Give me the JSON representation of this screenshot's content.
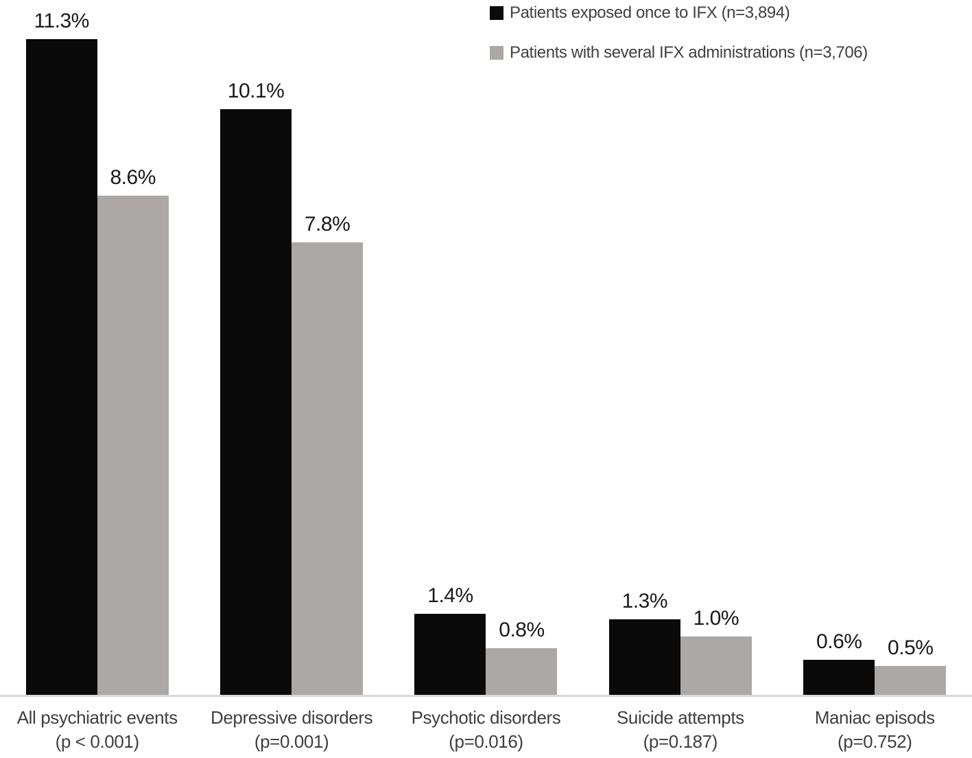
{
  "chart_data": {
    "type": "bar",
    "categories": [
      {
        "line1": "All psychiatric events",
        "line2": "(p < 0.001)"
      },
      {
        "line1": "Depressive disorders",
        "line2": "(p=0.001)"
      },
      {
        "line1": "Psychotic disorders",
        "line2": "(p=0.016)"
      },
      {
        "line1": "Suicide attempts",
        "line2": "(p=0.187)"
      },
      {
        "line1": "Maniac episods",
        "line2": "(p=0.752)"
      }
    ],
    "series": [
      {
        "name": "Patients exposed once to IFX (n=3,894)",
        "color": "#0a0a0a",
        "values": [
          11.3,
          10.1,
          1.4,
          1.3,
          0.6
        ],
        "labels": [
          "11.3%",
          "10.1%",
          "1.4%",
          "1.3%",
          "0.6%"
        ]
      },
      {
        "name": "Patients with several IFX administrations (n=3,706)",
        "color": "#aba8a6",
        "values": [
          8.6,
          7.8,
          0.8,
          1.0,
          0.5
        ],
        "labels": [
          "8.6%",
          "7.8%",
          "0.8%",
          "1.0%",
          "0.5%"
        ]
      }
    ],
    "title": "",
    "xlabel": "",
    "ylabel": "",
    "ylim": [
      0,
      12
    ],
    "grid": false,
    "value_labels_shown": true,
    "legend_position": "top-right",
    "axis_line_color": "#d9d9d9",
    "value_label_color": "#1a1a1a",
    "category_label_color": "#3f3f3f",
    "legend_text_color": "#404040"
  }
}
